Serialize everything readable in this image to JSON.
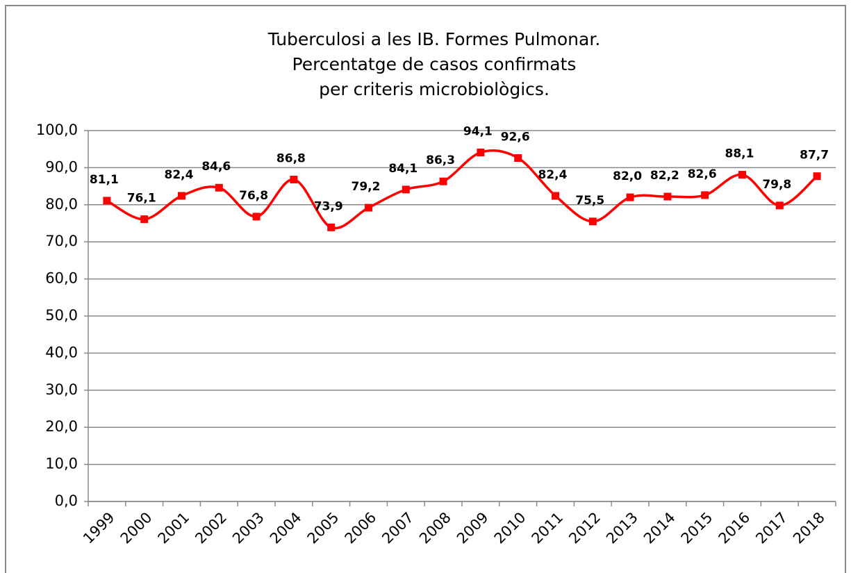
{
  "chart_data": {
    "type": "line",
    "title": [
      "Tuberculosi a les IB. Formes Pulmonar.",
      "Percentatge de casos confirmats",
      "per criteris microbiològics."
    ],
    "categories": [
      "1999",
      "2000",
      "2001",
      "2002",
      "2003",
      "2004",
      "2005",
      "2006",
      "2007",
      "2008",
      "2009",
      "2010",
      "2011",
      "2012",
      "2013",
      "2014",
      "2015",
      "2016",
      "2017",
      "2018"
    ],
    "series": [
      {
        "color": "#ff0000",
        "values": [
          81.1,
          76.1,
          82.4,
          84.6,
          76.8,
          86.8,
          73.9,
          79.2,
          84.1,
          86.3,
          94.1,
          92.6,
          82.4,
          75.5,
          82.0,
          82.2,
          82.6,
          88.1,
          79.8,
          87.7
        ],
        "value_labels": [
          "81,1",
          "76,1",
          "82,4",
          "84,6",
          "76,8",
          "86,8",
          "73,9",
          "79,2",
          "84,1",
          "86,3",
          "94,1",
          "92,6",
          "82,4",
          "75,5",
          "82,0",
          "82,2",
          "82,6",
          "88,1",
          "79,8",
          "87,7"
        ]
      }
    ],
    "ylim": [
      0,
      100
    ],
    "yticks": [
      {
        "value": 0,
        "label": "0,0"
      },
      {
        "value": 10,
        "label": "10,0"
      },
      {
        "value": 20,
        "label": "20,0"
      },
      {
        "value": 30,
        "label": "30,0"
      },
      {
        "value": 40,
        "label": "40,0"
      },
      {
        "value": 50,
        "label": "50,0"
      },
      {
        "value": 60,
        "label": "60,0"
      },
      {
        "value": 70,
        "label": "70,0"
      },
      {
        "value": 80,
        "label": "80,0"
      },
      {
        "value": 90,
        "label": "90,0"
      },
      {
        "value": 100,
        "label": "100,0"
      }
    ],
    "grid": true,
    "smooth": true
  }
}
